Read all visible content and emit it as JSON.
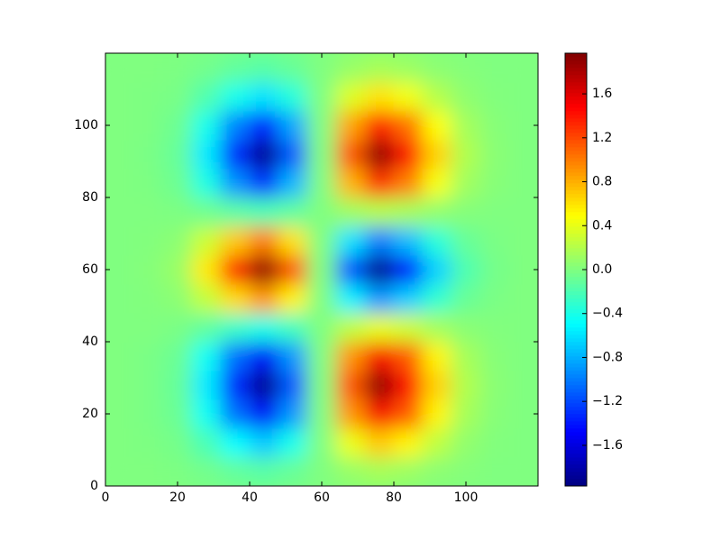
{
  "chart_data": {
    "type": "heatmap",
    "colormap": "jet",
    "x": [
      4,
      12,
      20,
      28,
      36,
      44,
      52,
      60,
      68,
      76,
      84,
      92,
      100,
      108,
      116
    ],
    "y": [
      4,
      12,
      20,
      28,
      36,
      44,
      52,
      60,
      68,
      76,
      84,
      92,
      100,
      108,
      116
    ],
    "z": [
      [
        0,
        0,
        -0.01,
        -0.05,
        -0.11,
        -0.15,
        -0.09,
        0,
        0.09,
        0.15,
        0.11,
        0.05,
        0.02,
        0,
        0
      ],
      [
        0,
        -0.01,
        -0.04,
        -0.21,
        -0.49,
        -0.7,
        -0.42,
        0,
        0.42,
        0.7,
        0.53,
        0.25,
        0.07,
        0.01,
        0
      ],
      [
        0,
        -0.02,
        -0.08,
        -0.45,
        -1.05,
        -1.5,
        -0.9,
        0,
        0.9,
        1.5,
        1.13,
        0.53,
        0.15,
        0.03,
        0
      ],
      [
        0,
        -0.02,
        -0.1,
        -0.57,
        -1.33,
        -1.9,
        -1.14,
        0,
        1.14,
        1.9,
        1.43,
        0.67,
        0.19,
        0.04,
        0
      ],
      [
        0,
        -0.02,
        -0.08,
        -0.45,
        -1.05,
        -1.5,
        -0.9,
        0,
        0.9,
        1.5,
        1.13,
        0.53,
        0.15,
        0.03,
        0
      ],
      [
        0,
        0,
        -0.02,
        -0.12,
        -0.28,
        -0.4,
        -0.24,
        0,
        0.24,
        0.4,
        0.3,
        0.14,
        0.04,
        0.01,
        0
      ],
      [
        0,
        0.01,
        0.05,
        0.27,
        0.63,
        0.9,
        0.54,
        0,
        -0.54,
        -0.9,
        -0.68,
        -0.32,
        -0.09,
        -0.02,
        0
      ],
      [
        0,
        0.02,
        0.1,
        0.57,
        1.33,
        1.9,
        1.14,
        0,
        -1.14,
        -1.9,
        -1.43,
        -0.67,
        -0.19,
        -0.04,
        0
      ],
      [
        0,
        0.01,
        0.05,
        0.3,
        0.7,
        1,
        0.6,
        0,
        -0.6,
        -1,
        -0.75,
        -0.35,
        -0.1,
        -0.02,
        0
      ],
      [
        0,
        0,
        -0.01,
        -0.06,
        -0.14,
        -0.2,
        -0.12,
        0,
        0.12,
        0.2,
        0.15,
        0.07,
        0.02,
        0,
        0
      ],
      [
        0,
        -0.01,
        -0.07,
        -0.39,
        -0.91,
        -1.3,
        -0.78,
        0,
        0.78,
        1.3,
        0.98,
        0.46,
        0.13,
        0.03,
        0
      ],
      [
        0,
        -0.02,
        -0.1,
        -0.57,
        -1.33,
        -1.9,
        -1.14,
        0,
        1.14,
        1.9,
        1.43,
        0.67,
        0.19,
        0.04,
        0
      ],
      [
        0,
        -0.01,
        -0.07,
        -0.42,
        -0.98,
        -1.4,
        -0.84,
        0,
        0.84,
        1.4,
        1.05,
        0.49,
        0.14,
        0.03,
        0
      ],
      [
        0,
        -0.01,
        -0.03,
        -0.18,
        -0.42,
        -0.6,
        -0.36,
        0,
        0.36,
        0.6,
        0.45,
        0.21,
        0.06,
        0.01,
        0
      ],
      [
        0,
        0,
        -0.01,
        -0.05,
        -0.11,
        -0.15,
        -0.09,
        0,
        0.09,
        0.15,
        0.11,
        0.05,
        0.02,
        0,
        0
      ]
    ],
    "xlim": [
      0,
      120
    ],
    "ylim": [
      0,
      120
    ],
    "xticks": [
      0,
      20,
      40,
      60,
      80,
      100
    ],
    "yticks": [
      0,
      20,
      40,
      60,
      80,
      100
    ],
    "clim": [
      -1.97,
      1.97
    ],
    "colorbar_ticks": [
      {
        "value": -1.6,
        "label": "−1.6"
      },
      {
        "value": -1.2,
        "label": "−1.2"
      },
      {
        "value": -0.8,
        "label": "−0.8"
      },
      {
        "value": -0.4,
        "label": "−0.4"
      },
      {
        "value": 0,
        "label": "0.0"
      },
      0.4,
      0.8,
      1.2,
      1.6
    ]
  }
}
